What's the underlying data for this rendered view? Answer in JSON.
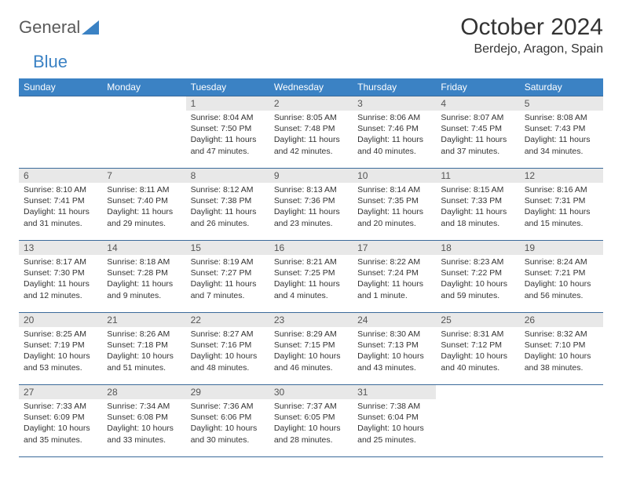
{
  "logo": {
    "part1": "General",
    "part2": "Blue"
  },
  "title": "October 2024",
  "location": "Berdejo, Aragon, Spain",
  "colors": {
    "header_bg": "#3b82c4",
    "header_text": "#ffffff",
    "daynum_bg": "#e8e8e8",
    "border": "#3b6a9a",
    "logo_gray": "#5a5a5a",
    "logo_blue": "#3b82c4",
    "text": "#333333"
  },
  "fonts": {
    "title_size": 30,
    "location_size": 16,
    "header_size": 12,
    "daynum_size": 12,
    "body_size": 10.5
  },
  "weekday_headers": [
    "Sunday",
    "Monday",
    "Tuesday",
    "Wednesday",
    "Thursday",
    "Friday",
    "Saturday"
  ],
  "weeks": [
    [
      null,
      null,
      {
        "n": "1",
        "sr": "8:04 AM",
        "ss": "7:50 PM",
        "dl": "11 hours and 47 minutes."
      },
      {
        "n": "2",
        "sr": "8:05 AM",
        "ss": "7:48 PM",
        "dl": "11 hours and 42 minutes."
      },
      {
        "n": "3",
        "sr": "8:06 AM",
        "ss": "7:46 PM",
        "dl": "11 hours and 40 minutes."
      },
      {
        "n": "4",
        "sr": "8:07 AM",
        "ss": "7:45 PM",
        "dl": "11 hours and 37 minutes."
      },
      {
        "n": "5",
        "sr": "8:08 AM",
        "ss": "7:43 PM",
        "dl": "11 hours and 34 minutes."
      }
    ],
    [
      {
        "n": "6",
        "sr": "8:10 AM",
        "ss": "7:41 PM",
        "dl": "11 hours and 31 minutes."
      },
      {
        "n": "7",
        "sr": "8:11 AM",
        "ss": "7:40 PM",
        "dl": "11 hours and 29 minutes."
      },
      {
        "n": "8",
        "sr": "8:12 AM",
        "ss": "7:38 PM",
        "dl": "11 hours and 26 minutes."
      },
      {
        "n": "9",
        "sr": "8:13 AM",
        "ss": "7:36 PM",
        "dl": "11 hours and 23 minutes."
      },
      {
        "n": "10",
        "sr": "8:14 AM",
        "ss": "7:35 PM",
        "dl": "11 hours and 20 minutes."
      },
      {
        "n": "11",
        "sr": "8:15 AM",
        "ss": "7:33 PM",
        "dl": "11 hours and 18 minutes."
      },
      {
        "n": "12",
        "sr": "8:16 AM",
        "ss": "7:31 PM",
        "dl": "11 hours and 15 minutes."
      }
    ],
    [
      {
        "n": "13",
        "sr": "8:17 AM",
        "ss": "7:30 PM",
        "dl": "11 hours and 12 minutes."
      },
      {
        "n": "14",
        "sr": "8:18 AM",
        "ss": "7:28 PM",
        "dl": "11 hours and 9 minutes."
      },
      {
        "n": "15",
        "sr": "8:19 AM",
        "ss": "7:27 PM",
        "dl": "11 hours and 7 minutes."
      },
      {
        "n": "16",
        "sr": "8:21 AM",
        "ss": "7:25 PM",
        "dl": "11 hours and 4 minutes."
      },
      {
        "n": "17",
        "sr": "8:22 AM",
        "ss": "7:24 PM",
        "dl": "11 hours and 1 minute."
      },
      {
        "n": "18",
        "sr": "8:23 AM",
        "ss": "7:22 PM",
        "dl": "10 hours and 59 minutes."
      },
      {
        "n": "19",
        "sr": "8:24 AM",
        "ss": "7:21 PM",
        "dl": "10 hours and 56 minutes."
      }
    ],
    [
      {
        "n": "20",
        "sr": "8:25 AM",
        "ss": "7:19 PM",
        "dl": "10 hours and 53 minutes."
      },
      {
        "n": "21",
        "sr": "8:26 AM",
        "ss": "7:18 PM",
        "dl": "10 hours and 51 minutes."
      },
      {
        "n": "22",
        "sr": "8:27 AM",
        "ss": "7:16 PM",
        "dl": "10 hours and 48 minutes."
      },
      {
        "n": "23",
        "sr": "8:29 AM",
        "ss": "7:15 PM",
        "dl": "10 hours and 46 minutes."
      },
      {
        "n": "24",
        "sr": "8:30 AM",
        "ss": "7:13 PM",
        "dl": "10 hours and 43 minutes."
      },
      {
        "n": "25",
        "sr": "8:31 AM",
        "ss": "7:12 PM",
        "dl": "10 hours and 40 minutes."
      },
      {
        "n": "26",
        "sr": "8:32 AM",
        "ss": "7:10 PM",
        "dl": "10 hours and 38 minutes."
      }
    ],
    [
      {
        "n": "27",
        "sr": "7:33 AM",
        "ss": "6:09 PM",
        "dl": "10 hours and 35 minutes."
      },
      {
        "n": "28",
        "sr": "7:34 AM",
        "ss": "6:08 PM",
        "dl": "10 hours and 33 minutes."
      },
      {
        "n": "29",
        "sr": "7:36 AM",
        "ss": "6:06 PM",
        "dl": "10 hours and 30 minutes."
      },
      {
        "n": "30",
        "sr": "7:37 AM",
        "ss": "6:05 PM",
        "dl": "10 hours and 28 minutes."
      },
      {
        "n": "31",
        "sr": "7:38 AM",
        "ss": "6:04 PM",
        "dl": "10 hours and 25 minutes."
      },
      null,
      null
    ]
  ],
  "labels": {
    "sunrise": "Sunrise:",
    "sunset": "Sunset:",
    "daylight": "Daylight:"
  }
}
